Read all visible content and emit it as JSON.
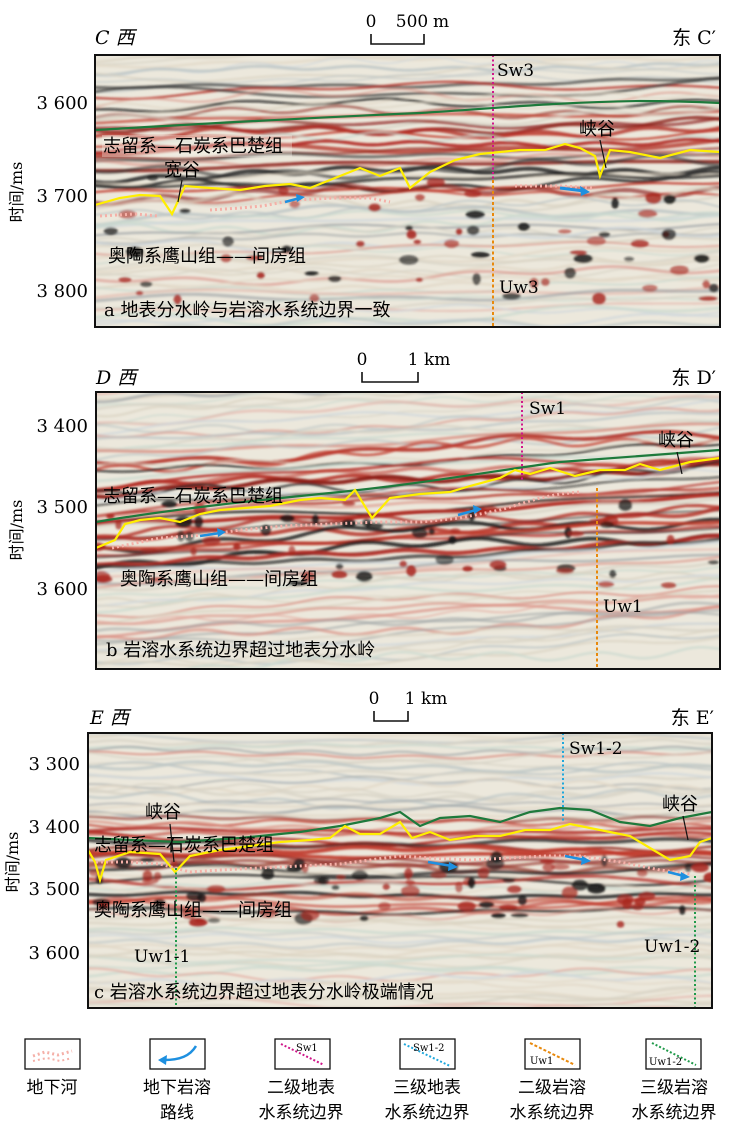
{
  "y_axis_label": "时间/ms",
  "scale_unit_a": "m",
  "scale_unit_bc": "km",
  "panels": [
    {
      "id": "a",
      "left_label": "C 西",
      "right_label": "东 C′",
      "scale": {
        "zero": "0",
        "length": "500"
      },
      "y_ticks": [
        "3 600",
        "3 700",
        "3 800"
      ],
      "formation_upper": "志留系—石炭系巴楚组",
      "formation_lower": "奥陶系鹰山组——间房组",
      "valley_labels": [
        "宽谷",
        "峡谷"
      ],
      "surface_boundary_label": "Sw3",
      "karst_boundary_label": "Uw3",
      "caption": "a 地表分水岭与岩溶水系统边界一致"
    },
    {
      "id": "b",
      "left_label": "D 西",
      "right_label": "东 D′",
      "scale": {
        "zero": "0",
        "length": "1"
      },
      "y_ticks": [
        "3 400",
        "3 500",
        "3 600"
      ],
      "formation_upper": "志留系—石炭系巴楚组",
      "formation_lower": "奥陶系鹰山组——间房组",
      "valley_labels": [
        "峡谷"
      ],
      "surface_boundary_label": "Sw1",
      "karst_boundary_label": "Uw1",
      "caption": "b 岩溶水系统边界超过地表分水岭"
    },
    {
      "id": "c",
      "left_label": "E 西",
      "right_label": "东 E′",
      "scale": {
        "zero": "0",
        "length": "1"
      },
      "y_ticks": [
        "3 300",
        "3 400",
        "3 500",
        "3 600"
      ],
      "formation_upper": "志留系—石炭系巴楚组",
      "formation_lower": "奥陶系鹰山组——间房组",
      "valley_labels": [
        "峡谷",
        "峡谷"
      ],
      "surface_boundary_label": "Sw1-2",
      "karst_boundary_labels": [
        "Uw1-1",
        "Uw1-2"
      ],
      "caption": "c 岩溶水系统边界超过地表分水岭极端情况"
    }
  ],
  "legend": [
    {
      "label": "地下河",
      "icon": "underground-river-icon"
    },
    {
      "label_line1": "地下岩溶",
      "label_line2": "路线",
      "icon": "karst-route-arrow-icon"
    },
    {
      "label_line1": "二级地表",
      "label_line2": "水系统边界",
      "icon": "secondary-surface-boundary-icon",
      "icon_text": "Sw1"
    },
    {
      "label_line1": "三级地表",
      "label_line2": "水系统边界",
      "icon": "tertiary-surface-boundary-icon",
      "icon_text": "Sw1-2"
    },
    {
      "label_line1": "二级岩溶",
      "label_line2": "水系统边界",
      "icon": "secondary-karst-boundary-icon",
      "icon_text": "Uw1"
    },
    {
      "label_line1": "三级岩溶",
      "label_line2": "水系统边界",
      "icon": "tertiary-karst-boundary-icon",
      "icon_text": "Uw1-2"
    }
  ],
  "colors": {
    "seismic_red": "#c0392b",
    "seismic_black": "#151515",
    "horizon_green": "#1e7a3c",
    "horizon_yellow": "#ffee00",
    "boundary_magenta": "#d0168a",
    "boundary_orange": "#e8890c",
    "boundary_cyan": "#1ea7dc",
    "boundary_green": "#1f9a4a",
    "karst_arrow": "#1e90e0"
  }
}
